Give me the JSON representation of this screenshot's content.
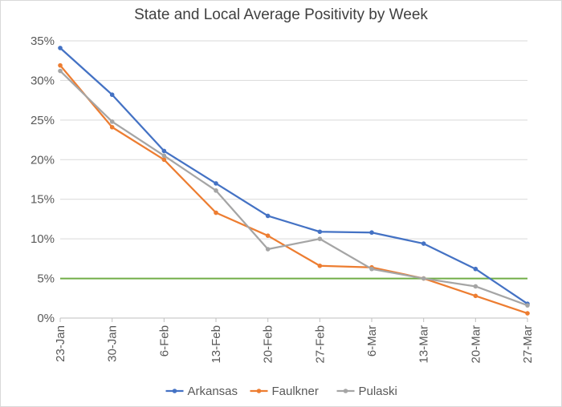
{
  "chart_data": {
    "type": "line",
    "title": "State and Local Average Positivity by Week",
    "xlabel": "",
    "ylabel": "",
    "categories": [
      "23-Jan",
      "30-Jan",
      "6-Feb",
      "13-Feb",
      "20-Feb",
      "27-Feb",
      "6-Mar",
      "13-Mar",
      "20-Mar",
      "27-Mar"
    ],
    "ylim": [
      0,
      35
    ],
    "yticks": [
      0,
      5,
      10,
      15,
      20,
      25,
      30,
      35
    ],
    "ytick_format": "percent",
    "grid": true,
    "legend": "bottom",
    "series": [
      {
        "name": "Arkansas",
        "color": "#4472c4",
        "values": [
          34.1,
          28.2,
          21.1,
          17.0,
          12.9,
          10.9,
          10.8,
          9.4,
          6.2,
          1.8
        ]
      },
      {
        "name": "Faulkner",
        "color": "#ed7d31",
        "values": [
          31.9,
          24.1,
          20.0,
          13.3,
          10.4,
          6.6,
          6.4,
          5.0,
          2.8,
          0.6
        ]
      },
      {
        "name": "Pulaski",
        "color": "#a5a5a5",
        "values": [
          31.2,
          24.8,
          20.5,
          16.1,
          8.7,
          10.0,
          6.2,
          5.0,
          4.0,
          1.6
        ]
      }
    ],
    "reference_line": {
      "value": 5,
      "color": "#70ad47"
    }
  }
}
